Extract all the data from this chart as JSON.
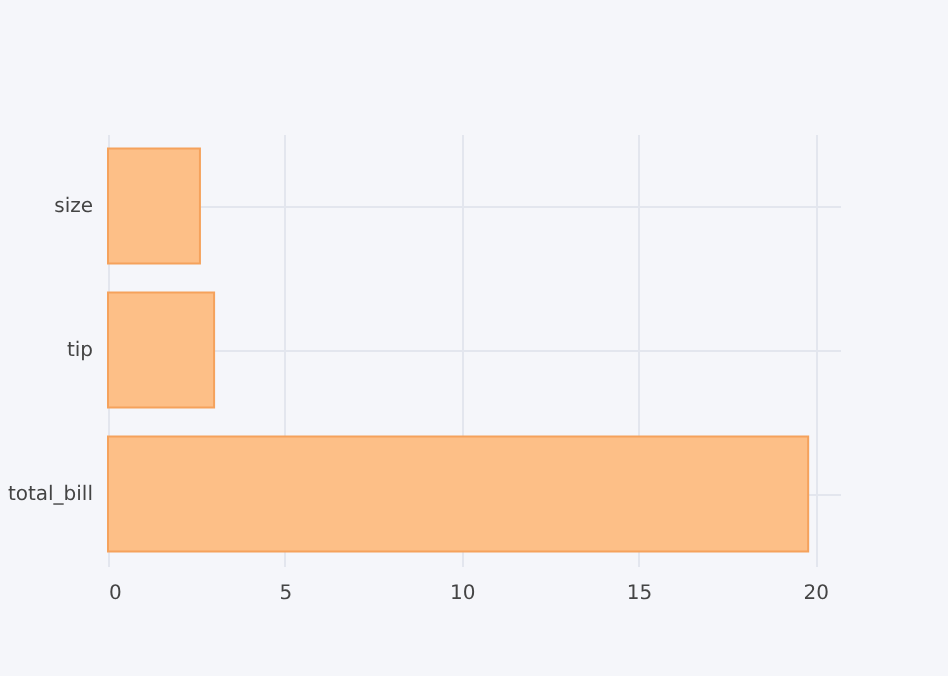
{
  "chart_data": {
    "type": "bar",
    "orientation": "horizontal",
    "categories": [
      "size",
      "tip",
      "total_bill"
    ],
    "series": [
      {
        "color": "#fdbf87",
        "values": [
          2.6,
          3.0,
          19.8
        ]
      }
    ],
    "xlim": [
      0,
      20.7
    ],
    "xticks": [
      0,
      5,
      10,
      15,
      20
    ],
    "grid": true
  }
}
